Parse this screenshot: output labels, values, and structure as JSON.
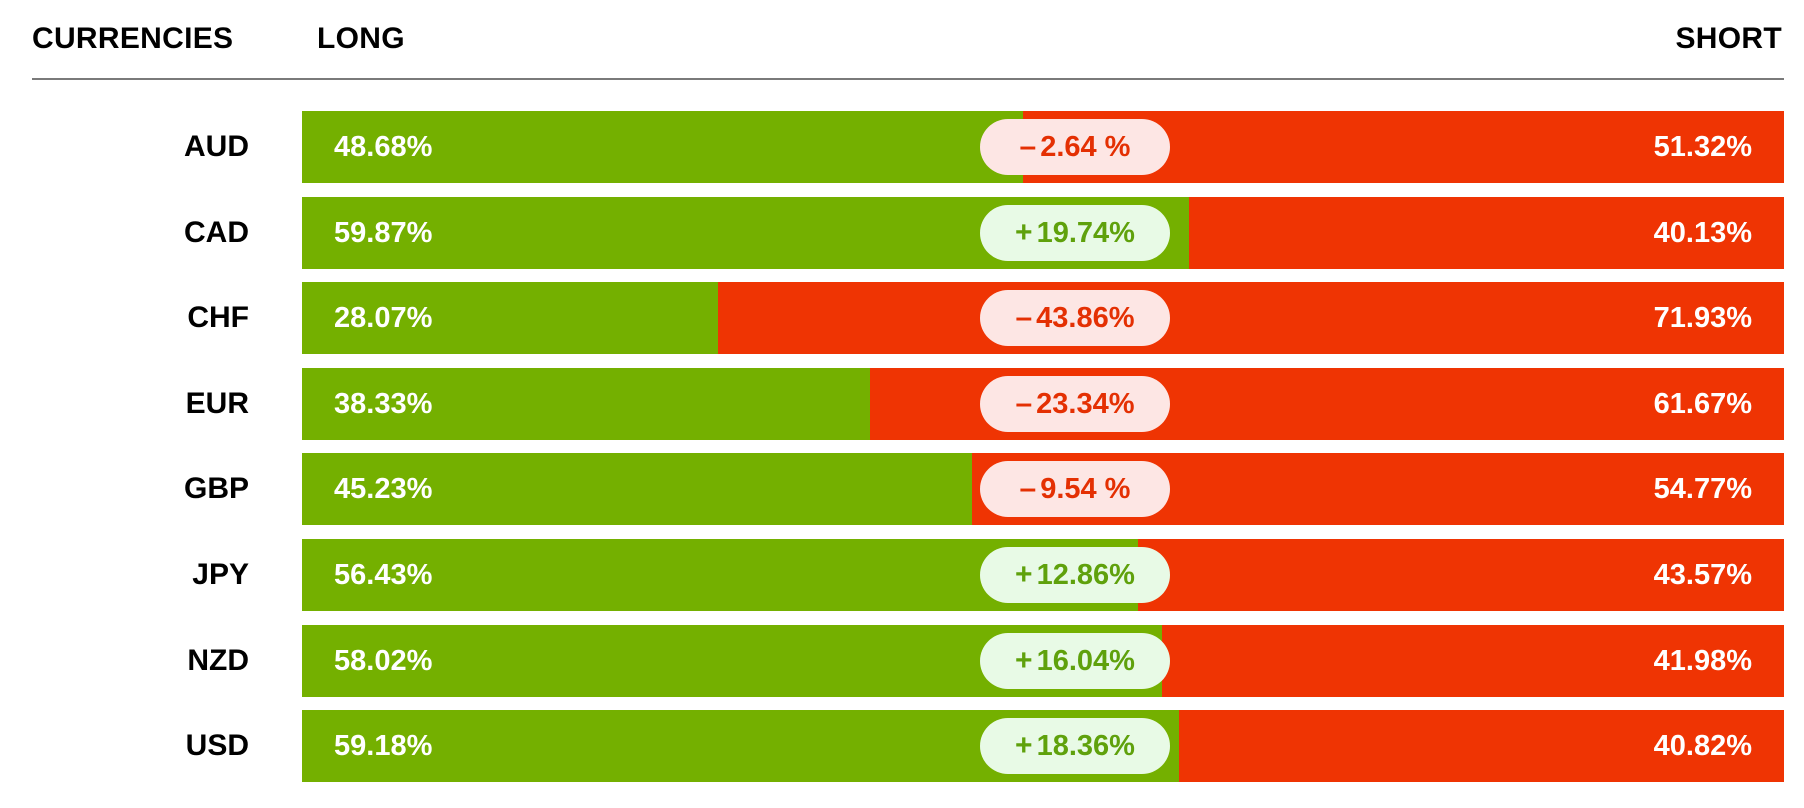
{
  "header": {
    "currencies_label": "CURRENCIES",
    "long_label": "LONG",
    "short_label": "SHORT"
  },
  "colors": {
    "long": "#74b000",
    "short": "#ef3403",
    "positive_pill_bg": "#e8fae6",
    "positive_pill_text": "#5fa10c",
    "negative_pill_bg": "#fde6e4",
    "negative_pill_text": "#e43003"
  },
  "chart_data": {
    "type": "bar",
    "stacked": true,
    "orientation": "horizontal",
    "categories": [
      "AUD",
      "CAD",
      "CHF",
      "EUR",
      "GBP",
      "JPY",
      "NZD",
      "USD"
    ],
    "series": [
      {
        "name": "LONG",
        "values": [
          48.68,
          59.87,
          28.07,
          38.33,
          45.23,
          56.43,
          58.02,
          59.18
        ]
      },
      {
        "name": "SHORT",
        "values": [
          51.32,
          40.13,
          71.93,
          61.67,
          54.77,
          43.57,
          41.98,
          40.82
        ]
      }
    ],
    "rows": [
      {
        "currency": "AUD",
        "long": 48.68,
        "long_label": "48.68%",
        "short": 51.32,
        "short_label": "51.32%",
        "net_sign": "–",
        "net_value": "2.64 %",
        "positive": false
      },
      {
        "currency": "CAD",
        "long": 59.87,
        "long_label": "59.87%",
        "short": 40.13,
        "short_label": "40.13%",
        "net_sign": "+",
        "net_value": "19.74%",
        "positive": true
      },
      {
        "currency": "CHF",
        "long": 28.07,
        "long_label": "28.07%",
        "short": 71.93,
        "short_label": "71.93%",
        "net_sign": "–",
        "net_value": "43.86%",
        "positive": false
      },
      {
        "currency": "EUR",
        "long": 38.33,
        "long_label": "38.33%",
        "short": 61.67,
        "short_label": "61.67%",
        "net_sign": "–",
        "net_value": "23.34%",
        "positive": false
      },
      {
        "currency": "GBP",
        "long": 45.23,
        "long_label": "45.23%",
        "short": 54.77,
        "short_label": "54.77%",
        "net_sign": "–",
        "net_value": "9.54 %",
        "positive": false
      },
      {
        "currency": "JPY",
        "long": 56.43,
        "long_label": "56.43%",
        "short": 43.57,
        "short_label": "43.57%",
        "net_sign": "+",
        "net_value": "12.86%",
        "positive": true
      },
      {
        "currency": "NZD",
        "long": 58.02,
        "long_label": "58.02%",
        "short": 41.98,
        "short_label": "41.98%",
        "net_sign": "+",
        "net_value": "16.04%",
        "positive": true
      },
      {
        "currency": "USD",
        "long": 59.18,
        "long_label": "59.18%",
        "short": 40.82,
        "short_label": "40.82%",
        "net_sign": "+",
        "net_value": "18.36%",
        "positive": true
      }
    ],
    "xlim": [
      0,
      100
    ]
  }
}
